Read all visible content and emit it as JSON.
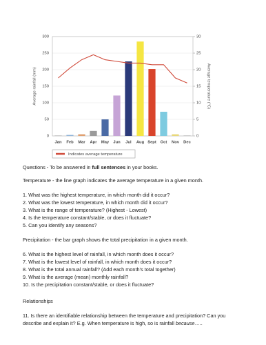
{
  "chart_data": {
    "type": "bar",
    "categories": [
      "Jan",
      "Feb",
      "Mar",
      "Apr",
      "May",
      "Jun",
      "Jul",
      "Aug",
      "Sept",
      "Oct",
      "Nov",
      "Dec"
    ],
    "values": [
      1,
      3,
      5,
      15,
      50,
      122,
      225,
      285,
      202,
      73,
      5,
      1
    ],
    "colors": [
      "#9a9a9a",
      "#8fb4d8",
      "#e0a070",
      "#9a9a9a",
      "#4a6aa5",
      "#c6a4d6",
      "#2b3a7a",
      "#f5e642",
      "#d9442b",
      "#7ecbe0",
      "#e8d87a",
      "#9a9a9a"
    ],
    "ylabel": "Average rainfall (mm)",
    "y2label": "Average temperature (°C)",
    "ylim": [
      0,
      300
    ],
    "yticks": [
      0,
      50,
      100,
      150,
      200,
      250,
      300
    ],
    "y2lim": [
      0,
      30
    ],
    "y2ticks": [
      0,
      5,
      10,
      15,
      20,
      25,
      30
    ],
    "series": [
      {
        "name": "Indicates average temperature",
        "type": "line",
        "axis": "y2",
        "color": "#d04a3a",
        "values": [
          17.5,
          20.5,
          23,
          24.5,
          23,
          22.5,
          22,
          22,
          21.5,
          21.5,
          17.5,
          16
        ]
      }
    ],
    "grid": true,
    "legend": "bottom-left"
  },
  "document": {
    "intro": [
      "Questions - To be answered in ",
      "full sentences",
      " in your books."
    ],
    "temperature": {
      "heading": "Temperature - the line graph indicates the average temperature in a given month.",
      "questions": [
        "1. What was the highest temperature, in which month did it occur?",
        "2. What was the lowest temperature, in which month did it occur?",
        "3. What is the range of temperature? (Highest - Lowest)",
        "4. Is the temperature constant/stable, or does it fluctuate?",
        "5. Can you identify any seasons?"
      ]
    },
    "precipitation": {
      "heading": "Precipitation - the bar graph shows the total precipitation in a given month.",
      "questions": [
        "6. What is the highest level of rainfall, in which month does it occur?",
        "7. What is the lowest level of rainfall, in which month does it occur?",
        "8. What is the total annual rainfall? (Add each month’s total together)",
        "9. What is the average (mean) monthly rainfall?",
        "10. Is the precipitation constant/stable, or does it fluctuate?"
      ]
    },
    "relationships": {
      "heading": "Relationships",
      "line1": "11. Is there an identifiable relationship between the temperature and precipitation? Can you",
      "line2": [
        "describe and explain it? E.g. When temperature is high, so is rainfall ",
        "because",
        "….."
      ]
    }
  }
}
